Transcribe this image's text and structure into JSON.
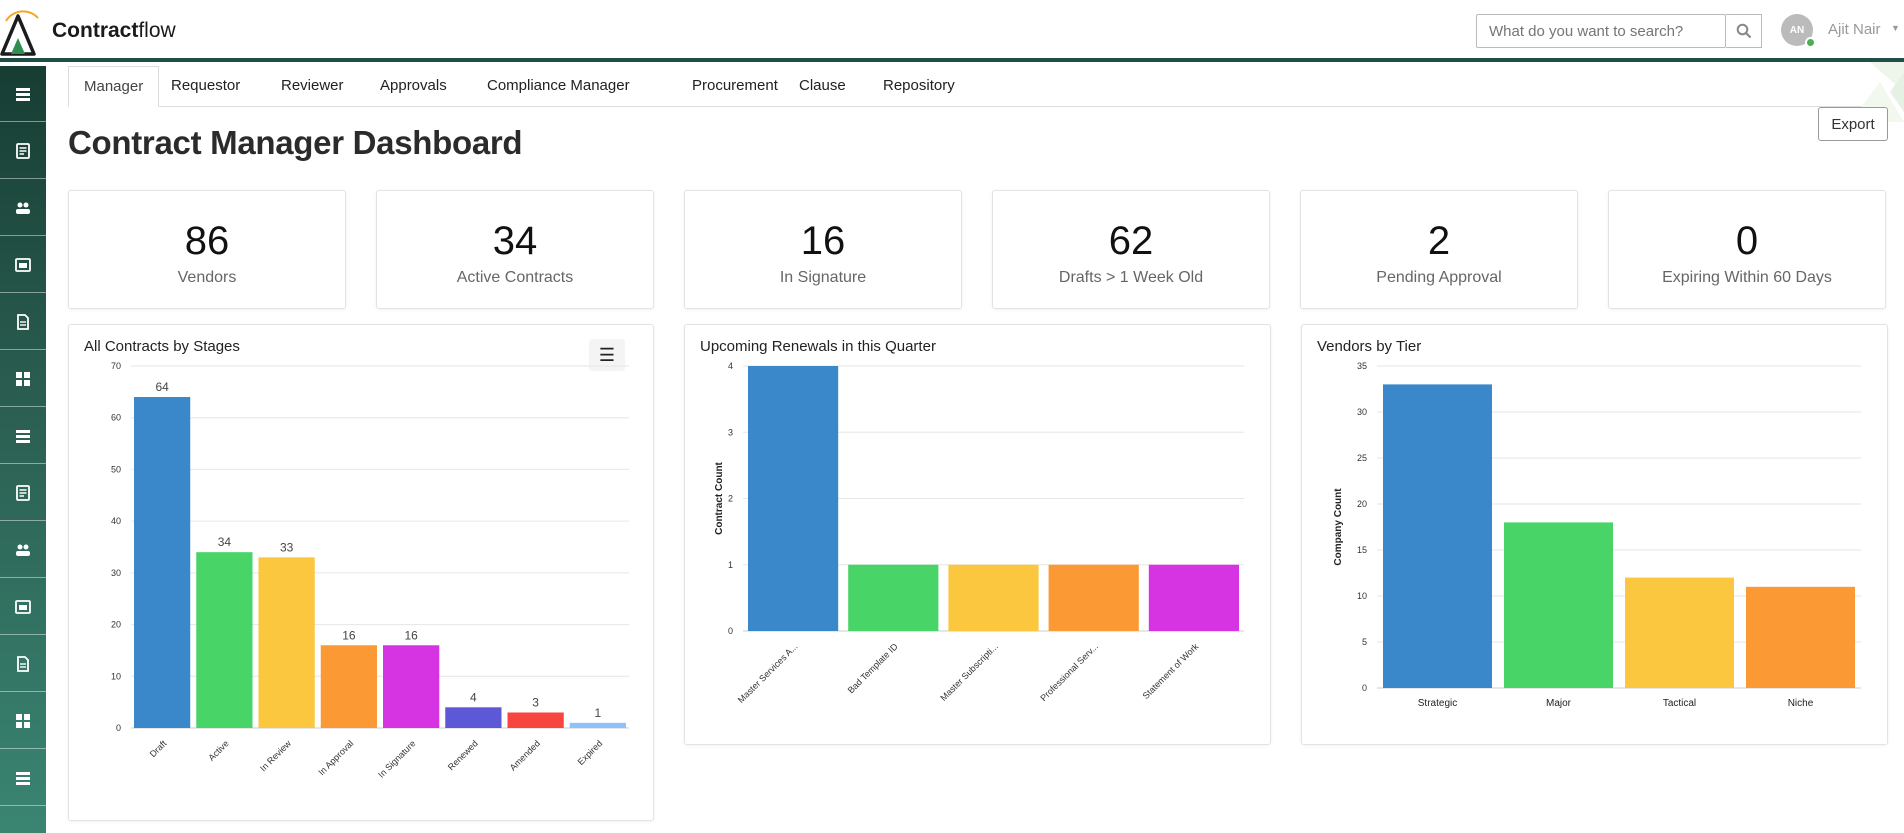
{
  "brand": {
    "name_bold": "Contract",
    "name_light": "flow"
  },
  "search": {
    "placeholder": "What do you want to search?"
  },
  "user": {
    "initials": "AN",
    "name": "Ajit Nair"
  },
  "tabs": [
    "Manager",
    "Requestor",
    "Reviewer",
    "Approvals",
    "Compliance Manager",
    "Procurement",
    "Clause",
    "Repository"
  ],
  "page_title": "Contract Manager Dashboard",
  "export_label": "Export",
  "stats": [
    {
      "value": "86",
      "label": "Vendors"
    },
    {
      "value": "34",
      "label": "Active Contracts"
    },
    {
      "value": "16",
      "label": "In Signature"
    },
    {
      "value": "62",
      "label": "Drafts > 1 Week Old"
    },
    {
      "value": "2",
      "label": "Pending Approval"
    },
    {
      "value": "0",
      "label": "Expiring Within 60 Days"
    }
  ],
  "menu_icon": "hamburger-icon",
  "sidebar_icons": [
    "list-icon",
    "server-icon",
    "users-icon",
    "calendar-icon",
    "document-icon",
    "word-doc-icon",
    "align-left-icon",
    "table-list-icon",
    "message-icon",
    "certificate-icon",
    "folder-open-icon",
    "grid-icon",
    "print-icon"
  ],
  "chart_data": [
    {
      "type": "bar",
      "title": "All Contracts by Stages",
      "categories": [
        "Draft",
        "Active",
        "In Review",
        "In Approval",
        "In Signature",
        "Renewed",
        "Amended",
        "Expired"
      ],
      "values": [
        64,
        34,
        33,
        16,
        16,
        4,
        3,
        1
      ],
      "colors": [
        "#3a87c9",
        "#49d468",
        "#fac73f",
        "#fb9934",
        "#d634e2",
        "#5c58d6",
        "#f7453f",
        "#8ec2f8"
      ],
      "ylim": [
        0,
        70
      ],
      "yticks": [
        0,
        10,
        20,
        30,
        40,
        50,
        60,
        70
      ],
      "ylabel": "",
      "show_data_labels": true,
      "grid": true
    },
    {
      "type": "bar",
      "title": "Upcoming Renewals in this Quarter",
      "categories": [
        "Master Services A...",
        "Bad Template ID",
        "Master Subscripti...",
        "Professional Serv...",
        "Statement of Work"
      ],
      "values": [
        4,
        1,
        1,
        1,
        1
      ],
      "colors": [
        "#3a87c9",
        "#49d468",
        "#fac73f",
        "#fb9934",
        "#d634e2"
      ],
      "ylim": [
        0,
        4
      ],
      "yticks": [
        0,
        1,
        2,
        3,
        4
      ],
      "ylabel": "Contract Count",
      "show_data_labels": false,
      "grid": true
    },
    {
      "type": "bar",
      "title": "Vendors by Tier",
      "categories": [
        "Strategic",
        "Major",
        "Tactical",
        "Niche"
      ],
      "values": [
        33,
        18,
        12,
        11
      ],
      "colors": [
        "#3a87c9",
        "#49d468",
        "#fac73f",
        "#fb9934"
      ],
      "ylim": [
        0,
        35
      ],
      "yticks": [
        0,
        5,
        10,
        15,
        20,
        25,
        30,
        35
      ],
      "ylabel": "Company Count",
      "show_data_labels": false,
      "grid": true
    }
  ]
}
